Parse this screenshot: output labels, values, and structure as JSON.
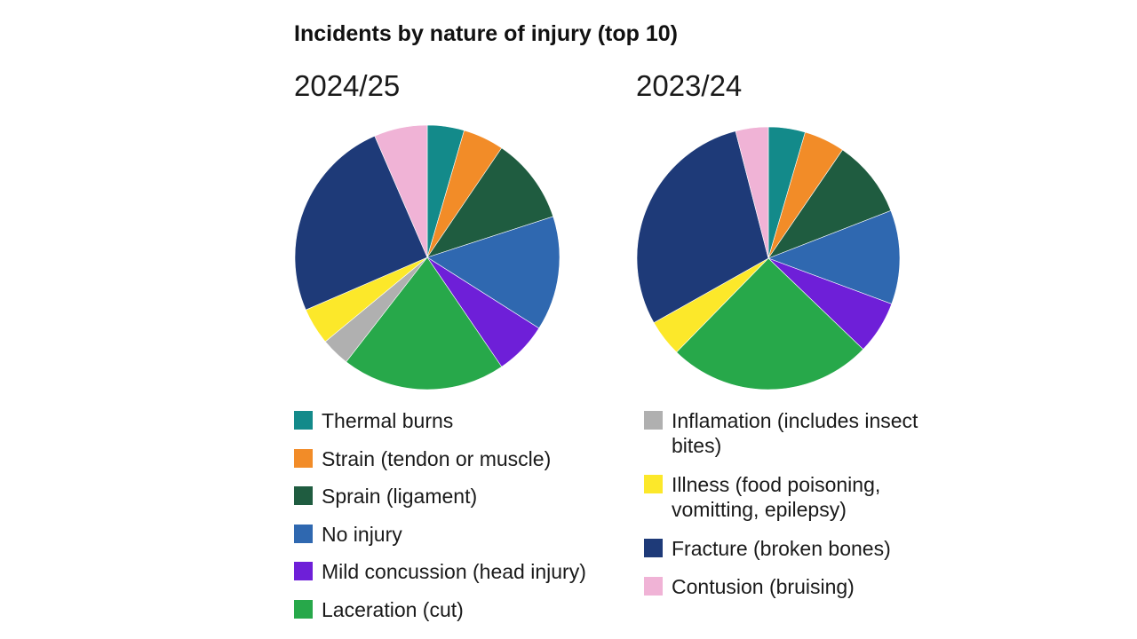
{
  "chart_data": [
    {
      "type": "pie",
      "title": "Incidents by nature of injury (top 10)",
      "subtitle": "2024/25",
      "slices": [
        {
          "label": "Thermal burns",
          "value": 4.5
        },
        {
          "label": "Strain (tendon or muscle)",
          "value": 5
        },
        {
          "label": "Sprain (ligament)",
          "value": 10.5
        },
        {
          "label": "No injury",
          "value": 14
        },
        {
          "label": "Mild concussion (head injury)",
          "value": 6.5
        },
        {
          "label": "Laceration (cut)",
          "value": 20
        },
        {
          "label": "Inflamation (includes insect bites)",
          "value": 3.5
        },
        {
          "label": "Illness (food poisoning, vomitting, epilepsy)",
          "value": 4.5
        },
        {
          "label": "Fracture (broken bones)",
          "value": 25
        },
        {
          "label": "Contusion (bruising)",
          "value": 6.5
        }
      ]
    },
    {
      "type": "pie",
      "subtitle": "2023/24",
      "slices": [
        {
          "label": "Thermal burns",
          "value": 4.5
        },
        {
          "label": "Strain (tendon or muscle)",
          "value": 5
        },
        {
          "label": "Sprain (ligament)",
          "value": 9.5
        },
        {
          "label": "No injury",
          "value": 11.5
        },
        {
          "label": "Mild concussion (head injury)",
          "value": 6.5
        },
        {
          "label": "Laceration (cut)",
          "value": 25
        },
        {
          "label": "Inflamation (includes insect bites)",
          "value": 0
        },
        {
          "label": "Illness (food poisoning, vomitting, epilepsy)",
          "value": 4.5
        },
        {
          "label": "Fracture (broken bones)",
          "value": 29
        },
        {
          "label": "Contusion (bruising)",
          "value": 4
        }
      ]
    }
  ],
  "legend": {
    "items": [
      {
        "label": "Thermal burns",
        "color": "#138a8a"
      },
      {
        "label": "Strain (tendon or muscle)",
        "color": "#f28c28"
      },
      {
        "label": "Sprain (ligament)",
        "color": "#1f5c40"
      },
      {
        "label": "No injury",
        "color": "#2f68b0"
      },
      {
        "label": "Mild concussion (head injury)",
        "color": "#6e1fd8"
      },
      {
        "label": "Laceration (cut)",
        "color": "#27a84a"
      },
      {
        "label": "Inflamation (includes insect bites)",
        "color": "#b0b0b0"
      },
      {
        "label": "Illness (food poisoning, vomitting, epilepsy)",
        "color": "#fce82a"
      },
      {
        "label": "Fracture (broken bones)",
        "color": "#1e3a78"
      },
      {
        "label": "Contusion (bruising)",
        "color": "#f0b3d6"
      }
    ]
  }
}
